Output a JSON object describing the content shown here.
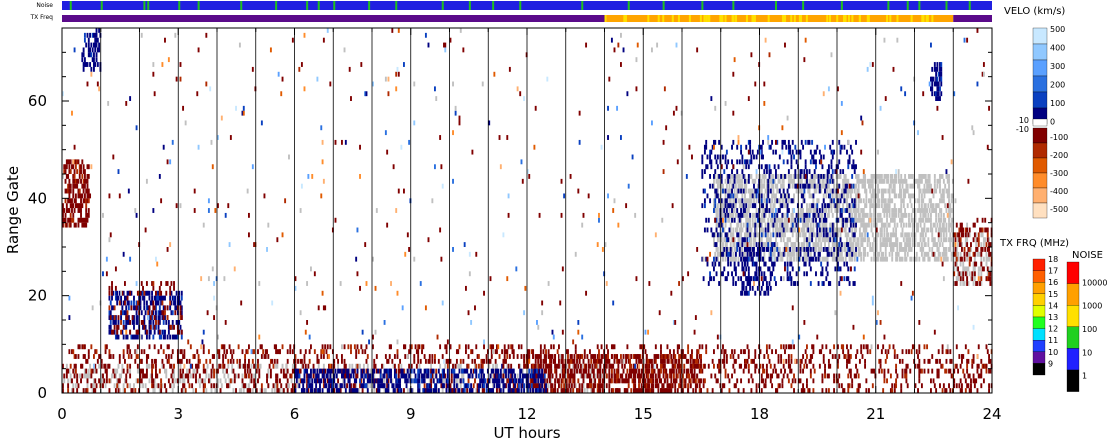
{
  "chart_data": {
    "type": "heatmap",
    "xlabel": "UT hours",
    "ylabel": "Range Gate",
    "xlim": [
      0,
      24
    ],
    "ylim": [
      0,
      75
    ],
    "x_ticks": [
      "0",
      "3",
      "6",
      "9",
      "12",
      "15",
      "18",
      "21",
      "24"
    ],
    "y_ticks": [
      "0",
      "20",
      "40",
      "60"
    ],
    "hour_gridlines": [
      1,
      2,
      3,
      4,
      5,
      6,
      7,
      8,
      9,
      10,
      11,
      12,
      13,
      14,
      15,
      16,
      17,
      18,
      19,
      20,
      21,
      22,
      23
    ],
    "top_strips": {
      "noise_label": "Noise",
      "txfreq_label": "TX Freq",
      "noise_base_color": "#2020e0",
      "noise_spike_color": "#20c020",
      "noise_spikes_hours": [
        0.2,
        1.0,
        2.1,
        2.2,
        3.0,
        3.5,
        4.6,
        5.5,
        6.3,
        6.6,
        7.0,
        7.9,
        8.6,
        9.8,
        10.5,
        11.1,
        11.8,
        13.4,
        14.6,
        15.5,
        16.5,
        17.3,
        18.4,
        19.1,
        20.1,
        21.3,
        21.8,
        22.1,
        22.8,
        23.4
      ],
      "txfreq_segments": [
        {
          "start": 0,
          "end": 14.0,
          "color": "#5a0a8a",
          "mhz": 10
        },
        {
          "start": 14.0,
          "end": 23.0,
          "color": "#ffa500",
          "mhz": 15
        },
        {
          "start": 23.0,
          "end": 24,
          "color": "#5a0a8a",
          "mhz": 10
        }
      ]
    },
    "velocity_colorbar": {
      "title": "VELO (km/s)",
      "positive_ticks": [
        "500",
        "400",
        "300",
        "200",
        "100",
        "0"
      ],
      "positive_colors": [
        "#c8e8ff",
        "#90c8ff",
        "#5aa0ff",
        "#2a70e0",
        "#0a40c0",
        "#000080"
      ],
      "mid_labels": [
        "10",
        "-10"
      ],
      "negative_ticks": [
        "-100",
        "-200",
        "-300",
        "-400",
        "-500"
      ],
      "negative_colors": [
        "#800000",
        "#b02a00",
        "#e05a00",
        "#ff8c2a",
        "#ffb070",
        "#ffe0c0"
      ]
    },
    "txfreq_colorbar": {
      "title": "TX FRQ (MHz)",
      "ticks": [
        "18",
        "17",
        "16",
        "15",
        "14",
        "13",
        "12",
        "11",
        "10",
        "9"
      ],
      "colors": [
        "#ff2000",
        "#ff6000",
        "#ffa000",
        "#ffd000",
        "#e0ff00",
        "#20ff20",
        "#00e0ff",
        "#2040ff",
        "#6010a0",
        "#000000"
      ]
    },
    "noise_colorbar": {
      "title": "NOISE",
      "ticks": [
        "10000",
        "1000",
        "100",
        "10",
        "1"
      ],
      "colors": [
        "#ff0000",
        "#ffa000",
        "#ffe000",
        "#20d020",
        "#2020ff",
        "#000000"
      ]
    },
    "ground_scatter_color": "#c0c0c0",
    "regions": [
      {
        "kind": "ground",
        "x0": 16.8,
        "x1": 23.0,
        "y0": 27,
        "y1": 45,
        "density": 0.55
      },
      {
        "kind": "ground",
        "x0": 23.0,
        "x1": 24.0,
        "y0": 22,
        "y1": 33,
        "density": 0.35
      },
      {
        "kind": "ground",
        "x0": 0.0,
        "x1": 14.0,
        "y0": 0,
        "y1": 6,
        "density": 0.18
      },
      {
        "kind": "vneg",
        "x0": 0.0,
        "x1": 24.0,
        "y0": 0,
        "y1": 10,
        "density": 0.22
      },
      {
        "kind": "vneg",
        "x0": 12.0,
        "x1": 16.5,
        "y0": 0,
        "y1": 8,
        "density": 0.45
      },
      {
        "kind": "vpos",
        "x0": 6.0,
        "x1": 12.5,
        "y0": 0,
        "y1": 5,
        "density": 0.45
      },
      {
        "kind": "vpos",
        "x0": 1.2,
        "x1": 3.1,
        "y0": 11,
        "y1": 21,
        "density": 0.45
      },
      {
        "kind": "vneg",
        "x0": 1.2,
        "x1": 3.1,
        "y0": 12,
        "y1": 23,
        "density": 0.15
      },
      {
        "kind": "vneg",
        "x0": 0.0,
        "x1": 0.7,
        "y0": 34,
        "y1": 48,
        "density": 0.5
      },
      {
        "kind": "vpos",
        "x0": 0.5,
        "x1": 1.0,
        "y0": 66,
        "y1": 75,
        "density": 0.5
      },
      {
        "kind": "vpos",
        "x0": 16.5,
        "x1": 20.5,
        "y0": 22,
        "y1": 52,
        "density": 0.2
      },
      {
        "kind": "vpos",
        "x0": 17.5,
        "x1": 18.3,
        "y0": 20,
        "y1": 30,
        "density": 0.45
      },
      {
        "kind": "vpos",
        "x0": 22.4,
        "x1": 22.7,
        "y0": 60,
        "y1": 68,
        "density": 0.6
      },
      {
        "kind": "vneg",
        "x0": 23.0,
        "x1": 24.0,
        "y0": 22,
        "y1": 36,
        "density": 0.25
      },
      {
        "kind": "scatter",
        "x0": 0.0,
        "x1": 24.0,
        "y0": 5,
        "y1": 75,
        "density": 0.012
      }
    ]
  }
}
